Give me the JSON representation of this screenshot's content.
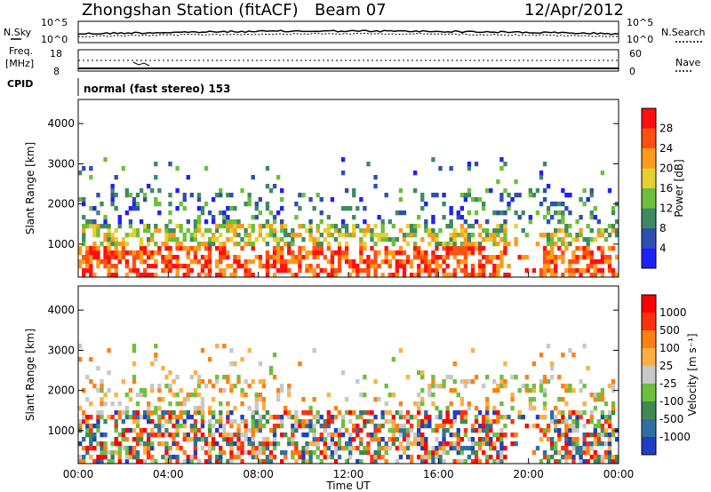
{
  "header": {
    "station": "Zhongshan Station (fitACF)",
    "beam": "Beam 07",
    "date": "12/Apr/2012"
  },
  "top_panels": {
    "nsky_label": "N.Sky",
    "nsky_ticks": [
      "10^5",
      "10^0"
    ],
    "nsearch_label": "N.Search",
    "nsearch_ticks": [
      "10^5",
      "10^0"
    ],
    "freq_label_1": "Freq.",
    "freq_label_2": "[MHz]",
    "freq_ticks": [
      "18",
      "8"
    ],
    "nave_label": "Nave",
    "nave_ticks": [
      "60",
      "0"
    ],
    "cpid_label": "CPID",
    "cpid_text": "normal (fast stereo) 153"
  },
  "chart_data": [
    {
      "type": "heatmap",
      "name": "power-panel",
      "ylabel": "Slant Range [km]",
      "yticks": [
        "1000",
        "2000",
        "3000",
        "4000"
      ],
      "ylim": [
        180,
        4600
      ],
      "xlim": [
        0,
        24
      ],
      "colorbar_label": "Power [dB]",
      "colorbar_ticks": [
        "4",
        "8",
        "12",
        "16",
        "20",
        "24",
        "28"
      ],
      "colors": [
        "#1f1fff",
        "#2f4fb0",
        "#3f8a60",
        "#6cbf3a",
        "#e6d030",
        "#ff9a1a",
        "#ff5010",
        "#ff1010"
      ]
    },
    {
      "type": "heatmap",
      "name": "velocity-panel",
      "ylabel": "Slant Range [km]",
      "yticks": [
        "1000",
        "2000",
        "3000",
        "4000"
      ],
      "ylim": [
        180,
        4600
      ],
      "xlim": [
        0,
        24
      ],
      "colorbar_label": "Velocity [m s⁻¹]",
      "colorbar_ticks": [
        "1000",
        "500",
        "100",
        "25",
        "-25",
        "-100",
        "-500",
        "-1000"
      ],
      "colors": [
        "#1f3fc0",
        "#2f6fa0",
        "#3f8a50",
        "#6cc040",
        "#c8c8c8",
        "#ffb040",
        "#ff8010",
        "#ff3010",
        "#ff0000"
      ]
    }
  ],
  "x_axis": {
    "ticks": [
      "00:00",
      "04:00",
      "08:00",
      "12:00",
      "16:00",
      "20:00",
      "00:00"
    ],
    "label": "Time UT"
  }
}
